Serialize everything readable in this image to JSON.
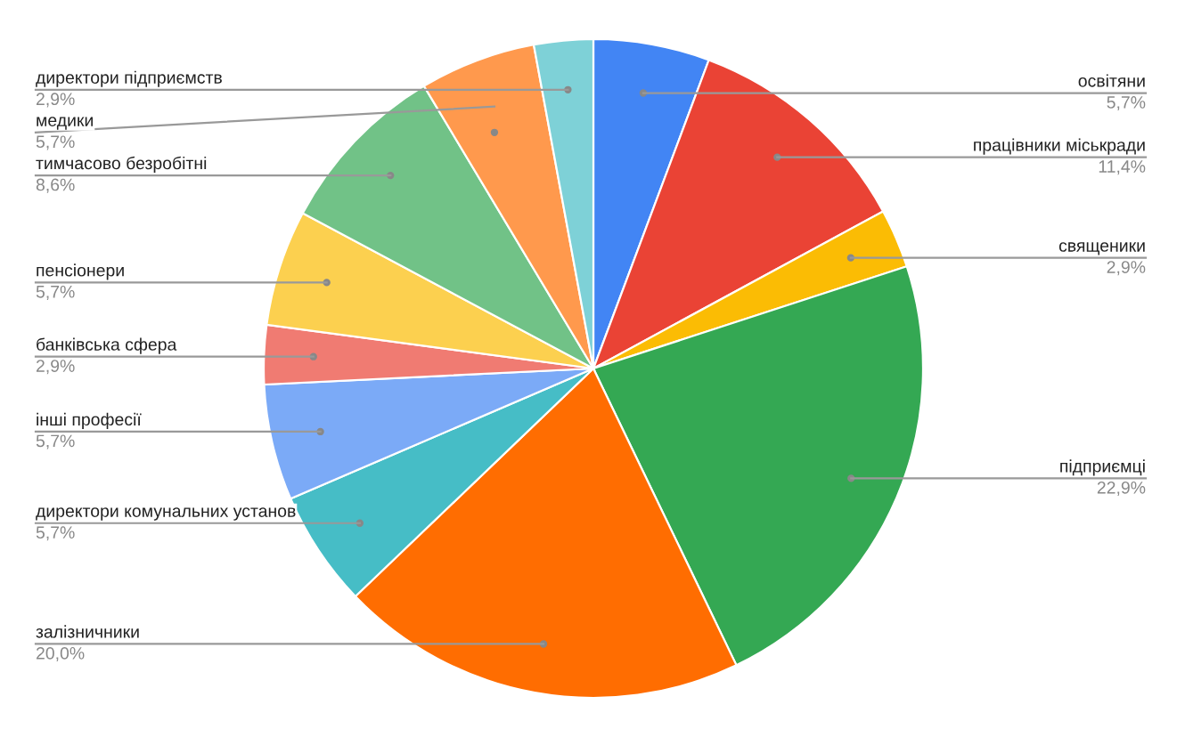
{
  "chart_data": {
    "type": "pie",
    "categories": [
      "освітяни",
      "працівники міськради",
      "священики",
      "підприємці",
      "залізничники",
      "директори комунальних установ",
      "інші професії",
      "банківська сфера",
      "пенсіонери",
      "тимчасово безробітні",
      "медики",
      "директори підприємств"
    ],
    "values": [
      5.7,
      11.4,
      2.9,
      22.9,
      20.0,
      5.7,
      5.7,
      2.9,
      5.7,
      8.6,
      5.7,
      2.9
    ],
    "value_labels": [
      "5,7%",
      "11,4%",
      "2,9%",
      "22,9%",
      "20,0%",
      "5,7%",
      "5,7%",
      "2,9%",
      "5,7%",
      "8,6%",
      "5,7%",
      "2,9%"
    ],
    "colors": [
      "#4285f4",
      "#ea4335",
      "#fbbc04",
      "#34a853",
      "#ff6d01",
      "#46bdc6",
      "#7baaf7",
      "#f07b72",
      "#fcd04f",
      "#71c287",
      "#ff994d",
      "#7ed1d7"
    ],
    "legend": false
  }
}
